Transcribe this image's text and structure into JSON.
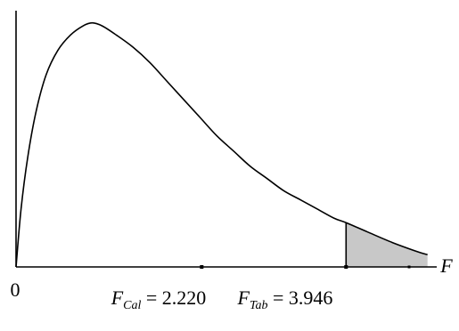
{
  "chart_data": {
    "type": "area",
    "x_axis_label": "F",
    "origin_label": "0",
    "title": "",
    "ylabel": "",
    "grid": false,
    "xlim": [
      0,
      5.03
    ],
    "ylim": [
      0,
      0.84
    ],
    "distribution": "F density curve",
    "curve": {
      "x": [
        0.0,
        0.06,
        0.14,
        0.24,
        0.36,
        0.5,
        0.65,
        0.8,
        0.91,
        1.03,
        1.2,
        1.4,
        1.6,
        1.8,
        2.0,
        2.2,
        2.4,
        2.6,
        2.8,
        3.0,
        3.2,
        3.4,
        3.6,
        3.8,
        3.946,
        4.2,
        4.5,
        4.8,
        4.92
      ],
      "y": [
        0.0,
        0.19,
        0.36,
        0.51,
        0.63,
        0.71,
        0.76,
        0.79,
        0.8,
        0.79,
        0.76,
        0.72,
        0.67,
        0.61,
        0.55,
        0.49,
        0.43,
        0.38,
        0.33,
        0.29,
        0.25,
        0.22,
        0.19,
        0.16,
        0.145,
        0.115,
        0.08,
        0.05,
        0.04
      ]
    },
    "markers": [
      {
        "id": "calculated",
        "x": 2.22,
        "sub_symbol": "F",
        "sub_text": "Cal",
        "value_text": " = 2.220"
      },
      {
        "id": "tabulated",
        "x": 3.946,
        "sub_symbol": "F",
        "sub_text": "Tab",
        "value_text": " = 3.946"
      }
    ],
    "shaded_region": {
      "from_x": 3.946,
      "to_x": 4.92,
      "fill": "#c8c8c8"
    },
    "right_tail_tick_x": 4.7,
    "colors": {
      "curve": "#000000",
      "axes": "#000000",
      "shade": "#c8c8c8"
    }
  }
}
